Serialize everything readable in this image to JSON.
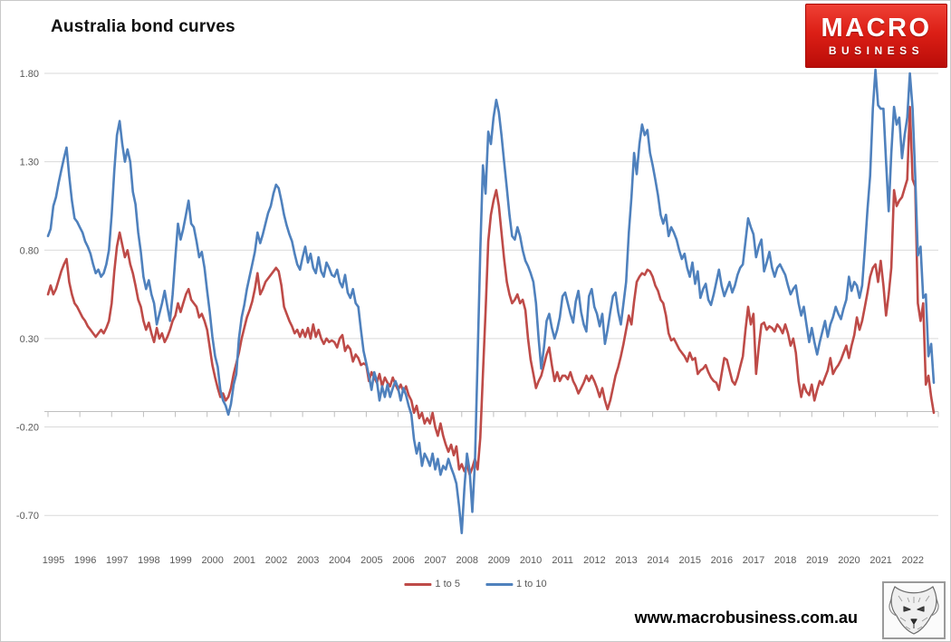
{
  "header": {
    "title": "Australia bond curves"
  },
  "brand": {
    "logo_line1": "MACRO",
    "logo_line2": "BUSINESS",
    "website": "www.macrobusiness.com.au"
  },
  "colors": {
    "grid": "#D9D9D9",
    "axis": "#BFBFBF",
    "tick_text": "#595959",
    "series_red": "#BE4B48",
    "series_blue": "#4F81BD"
  },
  "chart_data": {
    "type": "line",
    "title": "Australia bond curves",
    "frequency": "monthly",
    "x_range": [
      "1995-01",
      "2022-11"
    ],
    "x_tick_labels": [
      "1995",
      "1996",
      "1997",
      "1998",
      "1999",
      "2000",
      "2001",
      "2002",
      "2003",
      "2004",
      "2005",
      "2006",
      "2007",
      "2008",
      "2009",
      "2010",
      "2011",
      "2012",
      "2013",
      "2014",
      "2015",
      "2016",
      "2017",
      "2018",
      "2019",
      "2020",
      "2021",
      "2022"
    ],
    "y_ticks": [
      1.8,
      1.3,
      0.8,
      0.3,
      -0.2,
      -0.7
    ],
    "y_tick_labels": [
      "1.80",
      "1.30",
      "0.80",
      "0.30",
      "-0.20",
      "-0.70"
    ],
    "ylim": [
      -0.85,
      1.85
    ],
    "grid": "horizontal",
    "legend_position": "bottom",
    "legend": [
      {
        "label": "1 to 5",
        "color": "#BE4B48"
      },
      {
        "label": "1 to 10",
        "color": "#4F81BD"
      }
    ],
    "series": [
      {
        "name": "1 to 5",
        "color": "#BE4B48",
        "values": [
          0.55,
          0.6,
          0.55,
          0.58,
          0.63,
          0.68,
          0.72,
          0.75,
          0.62,
          0.55,
          0.5,
          0.48,
          0.45,
          0.42,
          0.4,
          0.37,
          0.35,
          0.33,
          0.31,
          0.33,
          0.35,
          0.33,
          0.36,
          0.4,
          0.5,
          0.68,
          0.82,
          0.9,
          0.83,
          0.76,
          0.8,
          0.72,
          0.67,
          0.6,
          0.52,
          0.48,
          0.4,
          0.35,
          0.39,
          0.33,
          0.28,
          0.36,
          0.3,
          0.33,
          0.28,
          0.31,
          0.35,
          0.4,
          0.43,
          0.5,
          0.45,
          0.5,
          0.55,
          0.58,
          0.52,
          0.5,
          0.48,
          0.42,
          0.44,
          0.4,
          0.35,
          0.25,
          0.15,
          0.08,
          0.02,
          -0.03,
          -0.01,
          -0.05,
          -0.03,
          0.02,
          0.1,
          0.16,
          0.22,
          0.3,
          0.36,
          0.42,
          0.46,
          0.51,
          0.58,
          0.67,
          0.55,
          0.58,
          0.62,
          0.64,
          0.66,
          0.68,
          0.7,
          0.68,
          0.6,
          0.48,
          0.44,
          0.4,
          0.37,
          0.33,
          0.35,
          0.31,
          0.35,
          0.31,
          0.36,
          0.3,
          0.38,
          0.31,
          0.35,
          0.3,
          0.27,
          0.3,
          0.28,
          0.29,
          0.28,
          0.25,
          0.3,
          0.32,
          0.23,
          0.26,
          0.24,
          0.17,
          0.21,
          0.19,
          0.15,
          0.16,
          0.15,
          0.06,
          0.11,
          0.08,
          0.05,
          0.1,
          0.03,
          0.08,
          0.05,
          0.03,
          0.08,
          0.04,
          0.01,
          0.04,
          0.0,
          0.03,
          -0.02,
          -0.05,
          -0.12,
          -0.08,
          -0.15,
          -0.12,
          -0.18,
          -0.15,
          -0.18,
          -0.12,
          -0.2,
          -0.25,
          -0.18,
          -0.25,
          -0.3,
          -0.34,
          -0.3,
          -0.36,
          -0.31,
          -0.44,
          -0.41,
          -0.45,
          -0.41,
          -0.47,
          -0.43,
          -0.38,
          -0.44,
          -0.26,
          0.1,
          0.45,
          0.85,
          1.0,
          1.08,
          1.14,
          1.05,
          0.9,
          0.75,
          0.62,
          0.55,
          0.5,
          0.52,
          0.55,
          0.5,
          0.52,
          0.46,
          0.3,
          0.18,
          0.1,
          0.02,
          0.06,
          0.09,
          0.15,
          0.21,
          0.25,
          0.15,
          0.06,
          0.11,
          0.06,
          0.09,
          0.09,
          0.07,
          0.11,
          0.06,
          0.03,
          -0.01,
          0.02,
          0.05,
          0.09,
          0.06,
          0.09,
          0.06,
          0.02,
          -0.03,
          0.02,
          -0.05,
          -0.1,
          -0.05,
          0.02,
          0.09,
          0.14,
          0.2,
          0.27,
          0.35,
          0.43,
          0.38,
          0.51,
          0.62,
          0.65,
          0.67,
          0.66,
          0.69,
          0.68,
          0.65,
          0.6,
          0.57,
          0.52,
          0.5,
          0.43,
          0.33,
          0.29,
          0.3,
          0.27,
          0.24,
          0.22,
          0.2,
          0.17,
          0.22,
          0.18,
          0.19,
          0.1,
          0.12,
          0.13,
          0.15,
          0.11,
          0.08,
          0.06,
          0.05,
          0.01,
          0.1,
          0.19,
          0.18,
          0.12,
          0.06,
          0.04,
          0.08,
          0.14,
          0.2,
          0.35,
          0.48,
          0.38,
          0.44,
          0.1,
          0.25,
          0.38,
          0.39,
          0.35,
          0.37,
          0.36,
          0.34,
          0.38,
          0.36,
          0.33,
          0.38,
          0.33,
          0.26,
          0.3,
          0.22,
          0.06,
          -0.03,
          0.04,
          0.0,
          -0.02,
          0.04,
          -0.05,
          0.01,
          0.06,
          0.04,
          0.08,
          0.12,
          0.19,
          0.1,
          0.13,
          0.15,
          0.18,
          0.22,
          0.26,
          0.19,
          0.26,
          0.32,
          0.42,
          0.35,
          0.4,
          0.48,
          0.56,
          0.65,
          0.7,
          0.72,
          0.62,
          0.74,
          0.6,
          0.43,
          0.55,
          0.7,
          1.14,
          1.05,
          1.08,
          1.1,
          1.15,
          1.2,
          1.61,
          1.2,
          1.16,
          0.5,
          0.4,
          0.5,
          0.04,
          0.09,
          -0.03,
          -0.12
        ]
      },
      {
        "name": "1 to 10",
        "color": "#4F81BD",
        "values": [
          0.88,
          0.92,
          1.05,
          1.1,
          1.18,
          1.25,
          1.32,
          1.38,
          1.22,
          1.08,
          0.98,
          0.96,
          0.93,
          0.9,
          0.85,
          0.82,
          0.78,
          0.72,
          0.67,
          0.69,
          0.65,
          0.67,
          0.72,
          0.8,
          1.0,
          1.25,
          1.45,
          1.53,
          1.4,
          1.3,
          1.37,
          1.3,
          1.13,
          1.06,
          0.9,
          0.79,
          0.65,
          0.58,
          0.63,
          0.55,
          0.5,
          0.38,
          0.44,
          0.5,
          0.57,
          0.48,
          0.4,
          0.55,
          0.76,
          0.95,
          0.86,
          0.92,
          1.0,
          1.08,
          0.95,
          0.93,
          0.85,
          0.76,
          0.79,
          0.7,
          0.57,
          0.45,
          0.31,
          0.2,
          0.14,
          0.01,
          -0.05,
          -0.08,
          -0.13,
          -0.07,
          0.04,
          0.1,
          0.3,
          0.42,
          0.49,
          0.58,
          0.65,
          0.72,
          0.79,
          0.9,
          0.84,
          0.89,
          0.95,
          1.01,
          1.05,
          1.12,
          1.17,
          1.15,
          1.08,
          1.0,
          0.94,
          0.89,
          0.85,
          0.78,
          0.72,
          0.69,
          0.76,
          0.82,
          0.73,
          0.78,
          0.7,
          0.67,
          0.76,
          0.68,
          0.65,
          0.73,
          0.7,
          0.66,
          0.65,
          0.69,
          0.62,
          0.59,
          0.66,
          0.56,
          0.53,
          0.58,
          0.5,
          0.48,
          0.35,
          0.23,
          0.16,
          0.09,
          0.01,
          0.11,
          0.06,
          -0.05,
          0.03,
          -0.03,
          0.04,
          -0.03,
          0.02,
          0.06,
          0.02,
          -0.05,
          0.02,
          -0.02,
          -0.08,
          -0.13,
          -0.27,
          -0.35,
          -0.29,
          -0.42,
          -0.35,
          -0.38,
          -0.42,
          -0.35,
          -0.44,
          -0.38,
          -0.47,
          -0.42,
          -0.44,
          -0.38,
          -0.43,
          -0.47,
          -0.52,
          -0.65,
          -0.8,
          -0.55,
          -0.35,
          -0.45,
          -0.68,
          -0.4,
          0.2,
          0.8,
          1.28,
          1.12,
          1.47,
          1.4,
          1.55,
          1.65,
          1.58,
          1.45,
          1.3,
          1.15,
          1.0,
          0.88,
          0.86,
          0.93,
          0.88,
          0.8,
          0.74,
          0.71,
          0.67,
          0.62,
          0.5,
          0.3,
          0.13,
          0.25,
          0.4,
          0.44,
          0.36,
          0.3,
          0.35,
          0.42,
          0.54,
          0.56,
          0.5,
          0.44,
          0.39,
          0.51,
          0.57,
          0.45,
          0.38,
          0.34,
          0.54,
          0.58,
          0.48,
          0.44,
          0.37,
          0.44,
          0.27,
          0.35,
          0.45,
          0.54,
          0.56,
          0.45,
          0.38,
          0.5,
          0.62,
          0.9,
          1.1,
          1.35,
          1.23,
          1.4,
          1.51,
          1.45,
          1.48,
          1.35,
          1.28,
          1.2,
          1.11,
          1.0,
          0.95,
          1.0,
          0.88,
          0.93,
          0.9,
          0.86,
          0.8,
          0.75,
          0.78,
          0.7,
          0.65,
          0.73,
          0.61,
          0.68,
          0.53,
          0.58,
          0.61,
          0.52,
          0.49,
          0.55,
          0.62,
          0.69,
          0.6,
          0.54,
          0.58,
          0.62,
          0.56,
          0.6,
          0.66,
          0.7,
          0.72,
          0.85,
          0.98,
          0.93,
          0.89,
          0.76,
          0.82,
          0.86,
          0.68,
          0.73,
          0.79,
          0.7,
          0.65,
          0.7,
          0.72,
          0.69,
          0.66,
          0.6,
          0.55,
          0.58,
          0.6,
          0.5,
          0.43,
          0.48,
          0.38,
          0.28,
          0.36,
          0.28,
          0.21,
          0.28,
          0.34,
          0.4,
          0.31,
          0.38,
          0.42,
          0.48,
          0.44,
          0.41,
          0.47,
          0.52,
          0.65,
          0.57,
          0.62,
          0.6,
          0.53,
          0.6,
          0.81,
          1.03,
          1.22,
          1.6,
          1.82,
          1.62,
          1.6,
          1.6,
          1.3,
          1.02,
          1.35,
          1.61,
          1.51,
          1.55,
          1.32,
          1.45,
          1.55,
          1.8,
          1.6,
          1.22,
          0.77,
          0.82,
          0.53,
          0.55,
          0.2,
          0.27,
          0.05
        ]
      }
    ]
  }
}
